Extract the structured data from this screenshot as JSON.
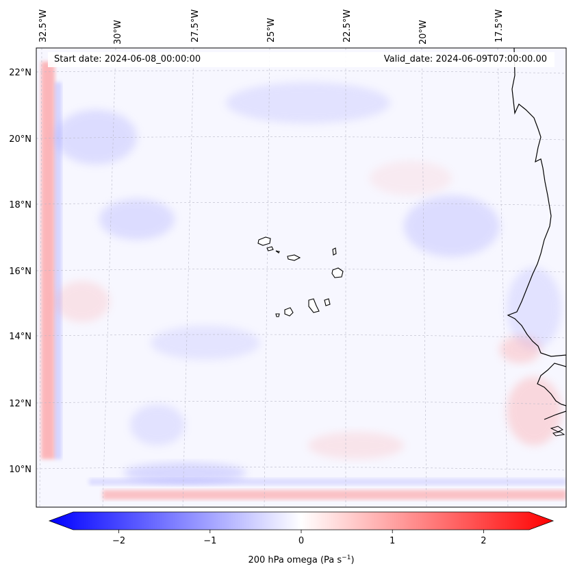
{
  "annotations": {
    "start_date": "Start date: 2024-06-08_00:00:00",
    "valid_date": "Valid_date: 2024-06-09T07:00:00.00"
  },
  "lon_labels": [
    "32.5°W",
    "30°W",
    "27.5°W",
    "25°W",
    "22.5°W",
    "20°W",
    "17.5°W"
  ],
  "lat_labels": [
    "22°N",
    "20°N",
    "18°N",
    "16°N",
    "14°N",
    "12°N",
    "10°N"
  ],
  "colorbar": {
    "label": "200 hPa omega (Pa s",
    "label_sup": "−1",
    "label_close": ")",
    "tick_labels": [
      "−2",
      "−1",
      "0",
      "1",
      "2"
    ],
    "tick_values": [
      -2,
      -1,
      0,
      1,
      2
    ],
    "range": [
      -2.6,
      2.6
    ],
    "colors": {
      "min": "#0000ff",
      "mid": "#ffffff",
      "max": "#ff0000"
    }
  },
  "colors": {
    "background": "#f7f7ff",
    "positive": "#ff7070",
    "negative": "#8080ff",
    "coast": "#000000"
  }
}
